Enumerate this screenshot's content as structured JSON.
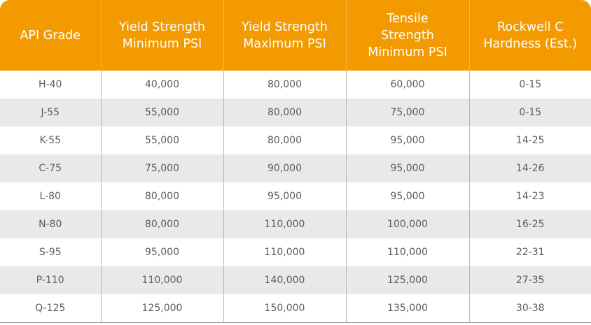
{
  "table": {
    "headers": [
      {
        "lines": [
          "API Grade"
        ]
      },
      {
        "lines": [
          "Yield Strength",
          "Minimum PSI"
        ]
      },
      {
        "lines": [
          "Yield Strength",
          "Maximum PSI"
        ]
      },
      {
        "lines": [
          "Tensile",
          "Strength",
          "Minimum PSI"
        ]
      },
      {
        "lines": [
          "Rockwell C",
          "Hardness (Est.)"
        ]
      }
    ],
    "rows": [
      [
        "H-40",
        "40,000",
        "80,000",
        "60,000",
        "0-15"
      ],
      [
        "J-55",
        "55,000",
        "80,000",
        "75,000",
        "0-15"
      ],
      [
        "K-55",
        "55,000",
        "80,000",
        "95,000",
        "14-25"
      ],
      [
        "C-75",
        "75,000",
        "90,000",
        "95,000",
        "14-26"
      ],
      [
        "L-80",
        "80,000",
        "95,000",
        "95,000",
        "14-23"
      ],
      [
        "N-80",
        "80,000",
        "110,000",
        "100,000",
        "16-25"
      ],
      [
        "S-95",
        "95,000",
        "110,000",
        "110,000",
        "22-31"
      ],
      [
        "P-110",
        "110,000",
        "140,000",
        "125,000",
        "27-35"
      ],
      [
        "Q-125",
        "125,000",
        "150,000",
        "135,000",
        "30-38"
      ]
    ]
  },
  "colors": {
    "header_bg": "#f29a00",
    "header_text": "#ffffff",
    "row_alt_bg": "#e9e9e9",
    "cell_text": "#5c5c5c"
  }
}
